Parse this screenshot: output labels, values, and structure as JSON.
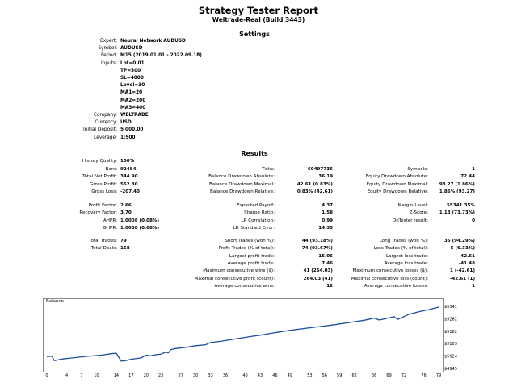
{
  "report": {
    "title": "Strategy Tester Report",
    "subtitle": "Weltrade-Real (Build 3443)"
  },
  "settings": {
    "heading": "Settings",
    "rows": [
      {
        "k": "Expert:",
        "v": "Neural Network AUDUSD"
      },
      {
        "k": "Symbol:",
        "v": "AUDUSD"
      },
      {
        "k": "Period:",
        "v": "M15 (2019.01.01 - 2022.09.18)"
      },
      {
        "k": "Inputs:",
        "v": "Lot=0.01"
      },
      {
        "k": "",
        "v": "TP=500"
      },
      {
        "k": "",
        "v": "SL=4000"
      },
      {
        "k": "",
        "v": "Level=30"
      },
      {
        "k": "",
        "v": "MA1=20"
      },
      {
        "k": "",
        "v": "MA2=200"
      },
      {
        "k": "",
        "v": "MA3=400"
      },
      {
        "k": "Company:",
        "v": "WELTRADE"
      },
      {
        "k": "Currency:",
        "v": "USD"
      },
      {
        "k": "Initial Deposit:",
        "v": "5 000.00"
      },
      {
        "k": "Leverage:",
        "v": "1:500"
      }
    ]
  },
  "results": {
    "heading": "Results",
    "history_quality": {
      "k": "History Quality:",
      "v": "100%"
    },
    "rows_a": [
      [
        {
          "k": "Bars:",
          "v": "92484"
        },
        {
          "k": "Ticks:",
          "v": "60497736"
        },
        {
          "k": "Symbols:",
          "v": "1"
        }
      ],
      [
        {
          "k": "Total Net Profit:",
          "v": "344.90"
        },
        {
          "k": "Balance Drawdown Absolute:",
          "v": "36.19"
        },
        {
          "k": "Equity Drawdown Absolute:",
          "v": "72.44"
        }
      ],
      [
        {
          "k": "Gross Profit:",
          "v": "552.30"
        },
        {
          "k": "Balance Drawdown Maximal:",
          "v": "42.61 (0.83%)"
        },
        {
          "k": "Equity Drawdown Maximal:",
          "v": "93.27 (1.86%)"
        }
      ],
      [
        {
          "k": "Gross Loss:",
          "v": "-207.40"
        },
        {
          "k": "Balance Drawdown Relative:",
          "v": "0.83% (42.61)"
        },
        {
          "k": "Equity Drawdown Relative:",
          "v": "1.86% (93.27)"
        }
      ]
    ],
    "rows_b": [
      [
        {
          "k": "Profit Factor:",
          "v": "2.66"
        },
        {
          "k": "Expected Payoff:",
          "v": "4.37"
        },
        {
          "k": "Margin Level:",
          "v": "55341.35%"
        }
      ],
      [
        {
          "k": "Recovery Factor:",
          "v": "3.70"
        },
        {
          "k": "Sharpe Ratio:",
          "v": "1.58"
        },
        {
          "k": "Z-Score:",
          "v": "1.13 (73.73%)"
        }
      ],
      [
        {
          "k": "AHPR:",
          "v": "1.0008 (0.08%)"
        },
        {
          "k": "LR Correlation:",
          "v": "0.99"
        },
        {
          "k": "OnTester result:",
          "v": "0"
        }
      ],
      [
        {
          "k": "GHPR:",
          "v": "1.0008 (0.08%)"
        },
        {
          "k": "LR Standard Error:",
          "v": "14.35"
        },
        {
          "k": "",
          "v": ""
        }
      ]
    ],
    "rows_c": [
      [
        {
          "k": "Total Trades:",
          "v": "79"
        },
        {
          "k": "Short Trades (won %):",
          "v": "44 (93.18%)"
        },
        {
          "k": "Long Trades (won %):",
          "v": "35 (94.29%)"
        }
      ],
      [
        {
          "k": "Total Deals:",
          "v": "158"
        },
        {
          "k": "Profit Trades (% of total):",
          "v": "74 (93.67%)"
        },
        {
          "k": "Loss Trades (% of total):",
          "v": "5 (6.33%)"
        }
      ],
      [
        {
          "k": "",
          "v": ""
        },
        {
          "k": "Largest profit trade:",
          "v": "15.06"
        },
        {
          "k": "Largest loss trade:",
          "v": "-42.61"
        }
      ],
      [
        {
          "k": "",
          "v": ""
        },
        {
          "k": "Average profit trade:",
          "v": "7.46"
        },
        {
          "k": "Average loss trade:",
          "v": "-41.48"
        }
      ],
      [
        {
          "k": "",
          "v": ""
        },
        {
          "k": "Maximum consecutive wins ($):",
          "v": "41 (264.03)"
        },
        {
          "k": "Maximum consecutive losses ($):",
          "v": "1 (-42.61)"
        }
      ],
      [
        {
          "k": "",
          "v": ""
        },
        {
          "k": "Maximal consecutive profit (count):",
          "v": "264.03 (41)"
        },
        {
          "k": "Maximal consecutive loss (count):",
          "v": "-42.61 (1)"
        }
      ],
      [
        {
          "k": "",
          "v": ""
        },
        {
          "k": "Average consecutive wins:",
          "v": "12"
        },
        {
          "k": "Average consecutive losses:",
          "v": "1"
        }
      ]
    ]
  },
  "chart_data": {
    "type": "line",
    "title": "Balance",
    "x_ticks": [
      "0",
      "4",
      "7",
      "10",
      "14",
      "17",
      "20",
      "23",
      "27",
      "30",
      "33",
      "36",
      "40",
      "43",
      "46",
      "49",
      "53",
      "56",
      "59",
      "62",
      "66",
      "69",
      "72",
      "76",
      "79"
    ],
    "y_ticks": [
      "5341",
      "5262",
      "5182",
      "5103",
      "5024",
      "4945"
    ],
    "ylim": [
      4945,
      5341
    ],
    "xlim": [
      0,
      79
    ],
    "line_color": "#1a4fa0",
    "series": [
      {
        "values": [
          [
            0,
            5020
          ],
          [
            1,
            5024
          ],
          [
            1.5,
            4995
          ],
          [
            2,
            4998
          ],
          [
            3,
            5005
          ],
          [
            5,
            5012
          ],
          [
            8,
            5022
          ],
          [
            11,
            5030
          ],
          [
            13,
            5039
          ],
          [
            14,
            5042
          ],
          [
            15,
            4992
          ],
          [
            16,
            4996
          ],
          [
            17,
            5004
          ],
          [
            19,
            5012
          ],
          [
            20,
            5030
          ],
          [
            21,
            5026
          ],
          [
            22,
            5033
          ],
          [
            23,
            5036
          ],
          [
            24,
            5050
          ],
          [
            24.5,
            5045
          ],
          [
            25,
            5065
          ],
          [
            26,
            5072
          ],
          [
            28,
            5080
          ],
          [
            30,
            5090
          ],
          [
            32,
            5096
          ],
          [
            33,
            5110
          ],
          [
            35,
            5118
          ],
          [
            37,
            5128
          ],
          [
            39,
            5138
          ],
          [
            41,
            5148
          ],
          [
            43,
            5157
          ],
          [
            45,
            5168
          ],
          [
            47,
            5178
          ],
          [
            49,
            5188
          ],
          [
            52,
            5200
          ],
          [
            55,
            5212
          ],
          [
            58,
            5224
          ],
          [
            61,
            5238
          ],
          [
            64,
            5252
          ],
          [
            66,
            5266
          ],
          [
            67,
            5254
          ],
          [
            68,
            5260
          ],
          [
            70,
            5275
          ],
          [
            70.8,
            5258
          ],
          [
            71.5,
            5268
          ],
          [
            73,
            5290
          ],
          [
            75,
            5306
          ],
          [
            77,
            5320
          ],
          [
            79,
            5336
          ]
        ]
      }
    ]
  }
}
